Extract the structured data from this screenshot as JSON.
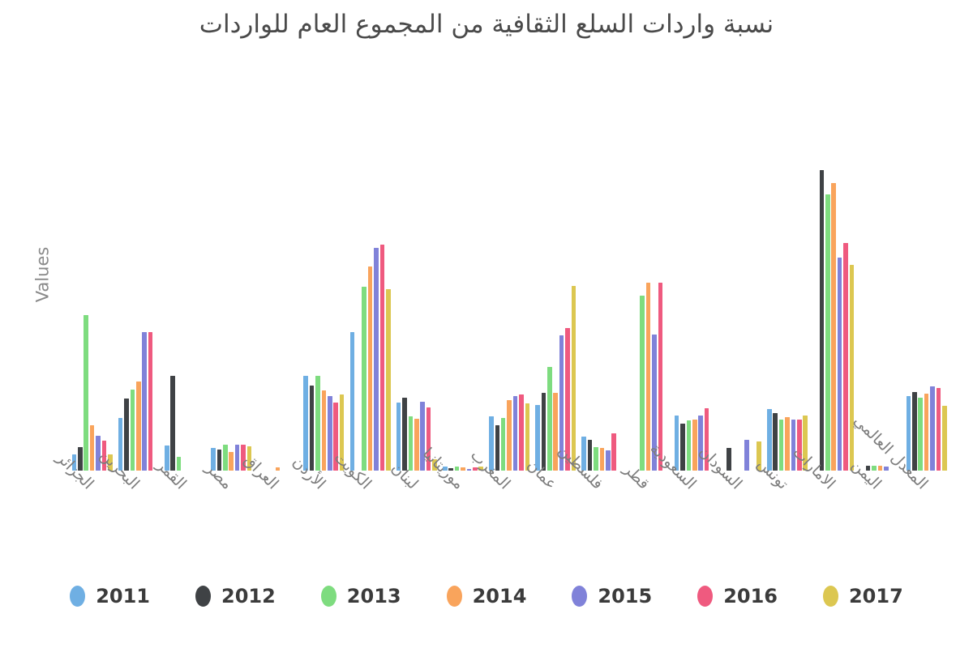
{
  "title": "نسبة واردات السلع الثقافية من المجموع العام للواردات",
  "y_axis_label": "Values",
  "background_color": "#ffffff",
  "text_colors": {
    "title": "#4a4a4a",
    "axis_label": "#8a8a8a",
    "tick_label": "#7d7d7d",
    "legend_label": "#3b3b3b"
  },
  "chart_data": {
    "type": "bar",
    "title": "نسبة واردات السلع الثقافية من المجموع العام للواردات",
    "xlabel": "",
    "ylabel": "Values",
    "ylim": [
      0,
      3.9
    ],
    "grid": false,
    "y_ticks_visible": false,
    "legend_position": "bottom",
    "categories": [
      "الجزائر",
      "البحرين",
      "القمر",
      "مصر",
      "العراق",
      "الأردن",
      "الكويت",
      "لبنان",
      "موريتانيا",
      "المغرب",
      "عمان",
      "فلسطين",
      "قطر",
      "السعودية",
      "السودان",
      "تونس",
      "الامارات",
      "اليمن",
      "المعدل العالمي"
    ],
    "series": [
      {
        "name": "2011",
        "color": "#6fafe3",
        "values": [
          0.2,
          0.65,
          0.31,
          0.28,
          0,
          1.17,
          1.71,
          0.84,
          0.05,
          0.67,
          0.81,
          0.42,
          0,
          0.68,
          0,
          0.76,
          0,
          0,
          0.92
        ]
      },
      {
        "name": "2012",
        "color": "#3f4245",
        "values": [
          0.29,
          0.89,
          1.17,
          0.26,
          0,
          1.05,
          0,
          0.9,
          0.03,
          0.56,
          0.96,
          0.38,
          0,
          0.58,
          0.28,
          0.71,
          3.71,
          0.06,
          0.97
        ]
      },
      {
        "name": "2013",
        "color": "#7edc7f",
        "values": [
          1.92,
          1.0,
          0.17,
          0.32,
          0,
          1.17,
          2.27,
          0.67,
          0.05,
          0.65,
          1.28,
          0.29,
          2.16,
          0.62,
          0,
          0.63,
          3.41,
          0.06,
          0.9
        ]
      },
      {
        "name": "2014",
        "color": "#f9a45c",
        "values": [
          0.56,
          1.1,
          0,
          0.23,
          0.04,
          0.99,
          2.52,
          0.64,
          0.04,
          0.87,
          0.96,
          0.28,
          2.32,
          0.63,
          0,
          0.66,
          3.55,
          0.06,
          0.95
        ]
      },
      {
        "name": "2015",
        "color": "#8082d9",
        "values": [
          0.43,
          1.71,
          0,
          0.32,
          0,
          0.92,
          2.75,
          0.85,
          0.02,
          0.92,
          1.67,
          0.25,
          1.68,
          0.68,
          0.38,
          0.63,
          2.63,
          0.05,
          1.04
        ]
      },
      {
        "name": "2016",
        "color": "#ef5a7f",
        "values": [
          0.37,
          1.71,
          0,
          0.32,
          0,
          0.84,
          2.79,
          0.78,
          0.04,
          0.94,
          1.76,
          0.46,
          2.32,
          0.77,
          0,
          0.63,
          2.81,
          0,
          1.02
        ]
      },
      {
        "name": "2017",
        "color": "#dcc751",
        "values": [
          0.2,
          0,
          0,
          0.3,
          0,
          0.94,
          2.24,
          0.14,
          0.05,
          0.83,
          2.28,
          0,
          0,
          0,
          0.36,
          0.68,
          2.54,
          0,
          0.8
        ]
      }
    ]
  }
}
